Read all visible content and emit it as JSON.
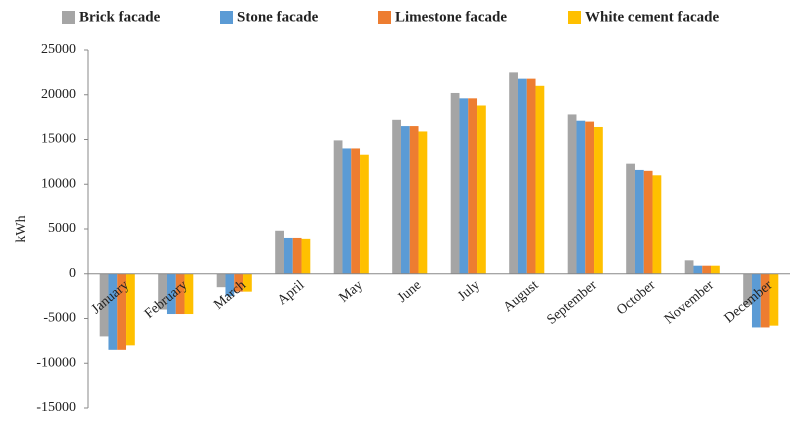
{
  "chart_data": {
    "type": "bar",
    "y_label": "kWh",
    "categories": [
      "January",
      "February",
      "March",
      "April",
      "May",
      "June",
      "July",
      "August",
      "September",
      "October",
      "November",
      "December"
    ],
    "series": [
      {
        "name": "Brick facade",
        "color": "#a5a5a5",
        "values": [
          -7000,
          -4000,
          -1500,
          4800,
          14900,
          17200,
          20200,
          22500,
          17800,
          12300,
          1500,
          -3500
        ]
      },
      {
        "name": "Stone facade",
        "color": "#5b9bd5",
        "values": [
          -8500,
          -4500,
          -2500,
          4000,
          14000,
          16500,
          19600,
          21800,
          17100,
          11600,
          900,
          -6000
        ]
      },
      {
        "name": "Limestone facade",
        "color": "#ed7d31",
        "values": [
          -8500,
          -4500,
          -2000,
          4000,
          14000,
          16500,
          19600,
          21800,
          17000,
          11500,
          900,
          -6000
        ]
      },
      {
        "name": "White cement facade",
        "color": "#ffc000",
        "values": [
          -8000,
          -4500,
          -2000,
          3900,
          13300,
          15900,
          18800,
          21000,
          16400,
          11000,
          900,
          -5800
        ]
      }
    ],
    "ylim": [
      -15000,
      25000
    ],
    "yticks": [
      -15000,
      -10000,
      -5000,
      0,
      5000,
      10000,
      15000,
      20000,
      25000
    ]
  }
}
